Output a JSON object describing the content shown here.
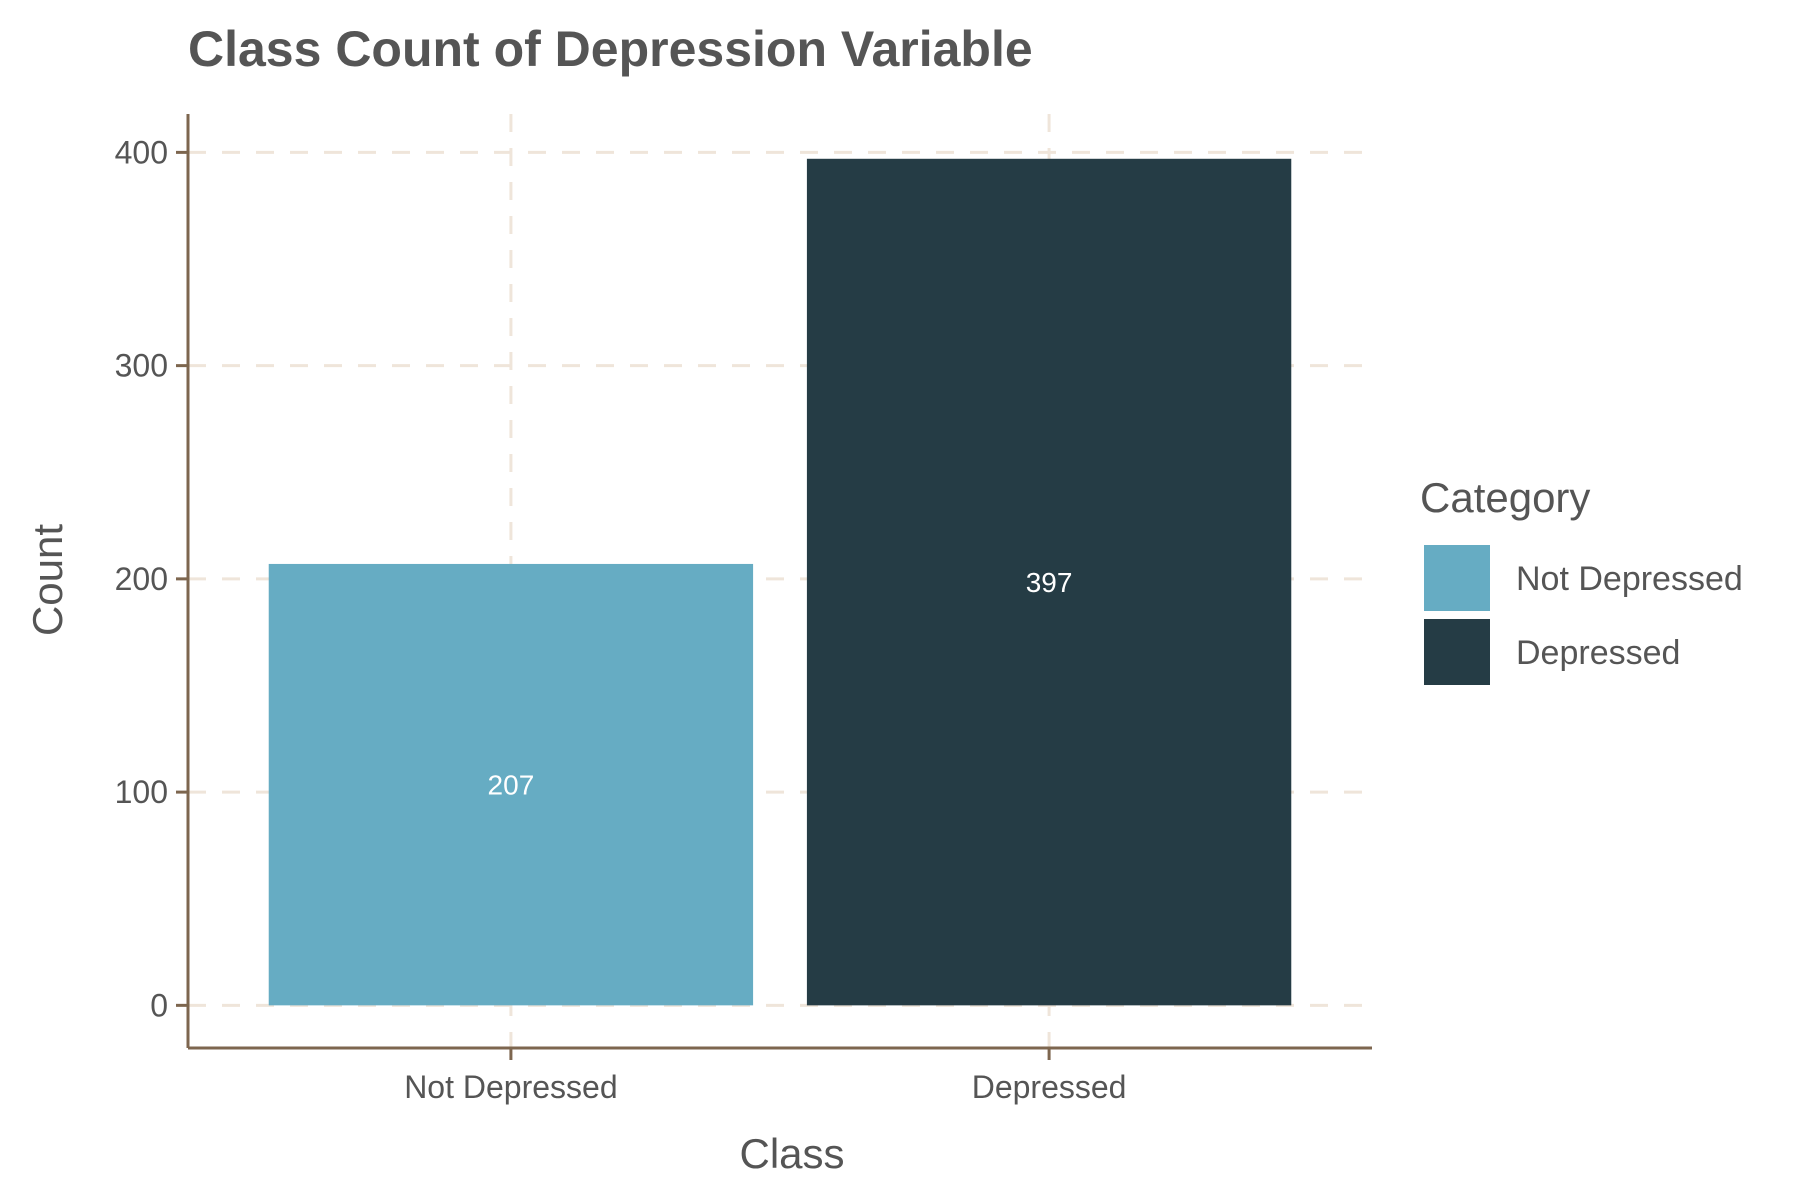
{
  "chart_data": {
    "type": "bar",
    "title": "Class Count of Depression Variable",
    "xlabel": "Class",
    "ylabel": "Count",
    "categories": [
      "Not Depressed",
      "Depressed"
    ],
    "values": [
      207,
      397
    ],
    "data_labels": [
      "207",
      "397"
    ],
    "colors": [
      "#66acc3",
      "#253c45"
    ],
    "ylim": [
      -20,
      418
    ],
    "y_ticks": [
      0,
      100,
      200,
      300,
      400
    ],
    "y_tick_labels": [
      "0",
      "100",
      "200",
      "300",
      "400"
    ],
    "grid": true,
    "grid_color": "#efe5da",
    "axis_color": "#7d664f",
    "legend": {
      "title": "Category",
      "position": "right",
      "entries": [
        "Not Depressed",
        "Depressed"
      ]
    }
  }
}
